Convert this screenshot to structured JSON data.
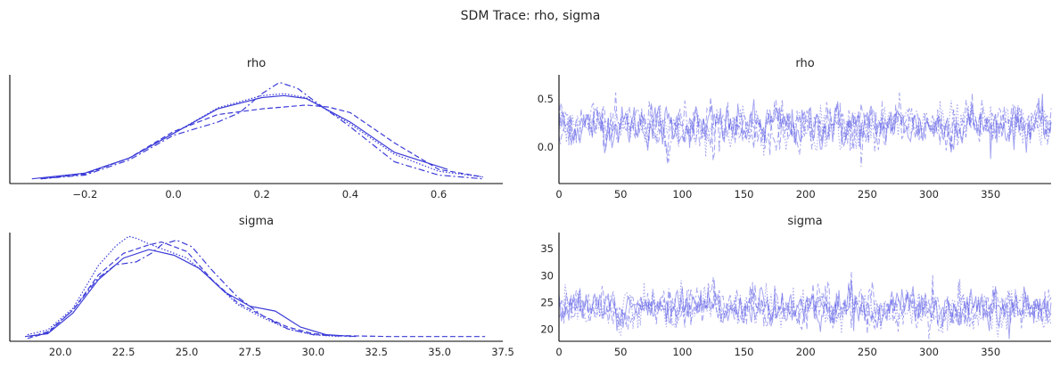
{
  "suptitle": "SDM Trace: rho, sigma",
  "colors": {
    "line": "#3b3bd8",
    "trace": "#5a5ae6",
    "axis": "#000000",
    "text": "#262626"
  },
  "chart_data": [
    {
      "type": "line",
      "panel": "density-rho",
      "title": "rho",
      "xlabel": "",
      "ylabel": "",
      "xlim": [
        -0.37,
        0.745
      ],
      "ylim": [
        -0.05,
        1.1
      ],
      "xticks": [
        "−0.2",
        "0.0",
        "0.2",
        "0.4",
        "0.6"
      ],
      "xtick_values": [
        -0.2,
        0.0,
        0.2,
        0.4,
        0.6
      ],
      "yticks": [],
      "series": [
        {
          "style": "solid",
          "x": [
            -0.32,
            -0.2,
            -0.1,
            0.0,
            0.1,
            0.2,
            0.25,
            0.3,
            0.4,
            0.5,
            0.62
          ],
          "y": [
            0.0,
            0.06,
            0.22,
            0.48,
            0.74,
            0.86,
            0.88,
            0.85,
            0.6,
            0.28,
            0.1
          ]
        },
        {
          "style": "dashed",
          "x": [
            -0.3,
            -0.2,
            -0.1,
            0.0,
            0.1,
            0.2,
            0.3,
            0.35,
            0.4,
            0.5,
            0.6,
            0.7
          ],
          "y": [
            0.0,
            0.05,
            0.22,
            0.5,
            0.68,
            0.74,
            0.78,
            0.76,
            0.7,
            0.38,
            0.1,
            0.02
          ]
        },
        {
          "style": "dashdot",
          "x": [
            -0.3,
            -0.2,
            -0.1,
            0.0,
            0.1,
            0.15,
            0.2,
            0.24,
            0.28,
            0.32,
            0.4,
            0.5,
            0.6,
            0.7
          ],
          "y": [
            0.0,
            0.04,
            0.2,
            0.46,
            0.6,
            0.7,
            0.9,
            1.02,
            0.96,
            0.82,
            0.55,
            0.18,
            0.04,
            0.0
          ]
        },
        {
          "style": "dotted",
          "x": [
            -0.3,
            -0.2,
            -0.1,
            0.0,
            0.1,
            0.2,
            0.25,
            0.3,
            0.4,
            0.5,
            0.6,
            0.7
          ],
          "y": [
            0.0,
            0.06,
            0.22,
            0.48,
            0.75,
            0.88,
            0.9,
            0.86,
            0.58,
            0.26,
            0.08,
            0.02
          ]
        }
      ]
    },
    {
      "type": "line",
      "panel": "trace-rho",
      "title": "rho",
      "xlabel": "",
      "ylabel": "",
      "xlim": [
        0,
        399
      ],
      "ylim": [
        -0.38,
        0.75
      ],
      "xticks": [
        "0",
        "50",
        "100",
        "150",
        "200",
        "250",
        "300",
        "350"
      ],
      "xtick_values": [
        0,
        50,
        100,
        150,
        200,
        250,
        300,
        350
      ],
      "yticks": [
        "0.0",
        "0.5"
      ],
      "ytick_values": [
        0.0,
        0.5
      ],
      "draws": 400,
      "chains": 4,
      "center": 0.22,
      "spread": 0.17
    },
    {
      "type": "line",
      "panel": "density-sigma",
      "title": "sigma",
      "xlabel": "",
      "ylabel": "",
      "xlim": [
        18.0,
        37.5
      ],
      "ylim": [
        -0.05,
        1.1
      ],
      "xticks": [
        "20.0",
        "22.5",
        "25.0",
        "27.5",
        "30.0",
        "32.5",
        "35.0",
        "37.5"
      ],
      "xtick_values": [
        20.0,
        22.5,
        25.0,
        27.5,
        30.0,
        32.5,
        35.0,
        37.5
      ],
      "yticks": [],
      "series": [
        {
          "style": "solid",
          "x": [
            18.6,
            19.5,
            20.5,
            21.5,
            22.5,
            23.5,
            24.5,
            25.5,
            26.5,
            27.5,
            28.5,
            29.5,
            30.5,
            31.7
          ],
          "y": [
            0.0,
            0.03,
            0.25,
            0.6,
            0.83,
            0.92,
            0.86,
            0.72,
            0.47,
            0.32,
            0.27,
            0.1,
            0.02,
            0.0
          ]
        },
        {
          "style": "dashed",
          "x": [
            18.7,
            19.5,
            20.5,
            21.5,
            22.5,
            23.5,
            24.0,
            25.0,
            26.0,
            27.0,
            28.0,
            29.0,
            30.0,
            31.0,
            33.0,
            35.0,
            36.8
          ],
          "y": [
            -0.02,
            0.04,
            0.28,
            0.65,
            0.88,
            0.97,
            1.0,
            0.9,
            0.6,
            0.36,
            0.22,
            0.1,
            0.03,
            0.01,
            0.0,
            0.0,
            0.0
          ]
        },
        {
          "style": "dashdot",
          "x": [
            18.8,
            19.5,
            20.5,
            21.5,
            22.2,
            23.0,
            23.6,
            24.0,
            24.6,
            25.2,
            26.0,
            27.0,
            28.0,
            29.0,
            30.0,
            31.5
          ],
          "y": [
            0.0,
            0.05,
            0.28,
            0.62,
            0.76,
            0.79,
            0.88,
            0.97,
            1.02,
            0.95,
            0.7,
            0.42,
            0.22,
            0.08,
            0.02,
            0.0
          ]
        },
        {
          "style": "dotted",
          "x": [
            18.7,
            19.5,
            20.5,
            21.5,
            22.2,
            22.7,
            23.0,
            23.5,
            24.0,
            25.0,
            26.0,
            27.0,
            28.0,
            29.0,
            30.0,
            31.0
          ],
          "y": [
            0.02,
            0.07,
            0.3,
            0.75,
            0.96,
            1.06,
            1.04,
            0.98,
            0.93,
            0.83,
            0.6,
            0.34,
            0.2,
            0.08,
            0.02,
            0.0
          ]
        }
      ]
    },
    {
      "type": "line",
      "panel": "trace-sigma",
      "title": "sigma",
      "xlabel": "",
      "ylabel": "",
      "xlim": [
        0,
        399
      ],
      "ylim": [
        17.8,
        38.0
      ],
      "xticks": [
        "0",
        "50",
        "100",
        "150",
        "200",
        "250",
        "300",
        "350"
      ],
      "xtick_values": [
        0,
        50,
        100,
        150,
        200,
        250,
        300,
        350
      ],
      "yticks": [
        "20",
        "25",
        "30",
        "35"
      ],
      "ytick_values": [
        20,
        25,
        30,
        35
      ],
      "draws": 400,
      "chains": 4,
      "center": 23.8,
      "spread": 2.6
    }
  ]
}
